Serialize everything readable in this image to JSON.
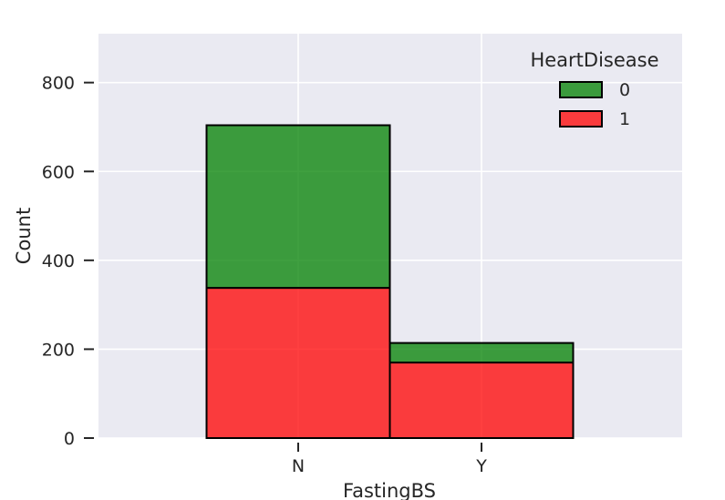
{
  "chart_data": {
    "type": "bar",
    "stacked": true,
    "xlabel": "FastingBS",
    "ylabel": "Count",
    "categories": [
      "N",
      "Y"
    ],
    "series": [
      {
        "name": "1",
        "values": [
          338,
          170
        ],
        "color": "#ff0000"
      },
      {
        "name": "0",
        "values": [
          366,
          44
        ],
        "color": "#008000"
      }
    ],
    "ylim": [
      0,
      910
    ],
    "yticks": [
      0,
      200,
      400,
      600,
      800
    ],
    "grid": true,
    "legend": {
      "title": "HeartDisease",
      "placement": "top-right",
      "entries": [
        "0",
        "1"
      ]
    },
    "background_color": "#eaeaf2",
    "bar_alpha": 0.75
  }
}
